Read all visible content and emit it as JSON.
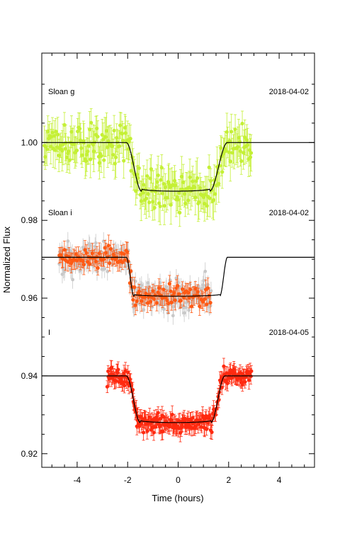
{
  "chart_data": {
    "type": "scatter",
    "title": "",
    "xlabel": "Time (hours)",
    "ylabel": "Normalized Flux",
    "xlim": [
      -5.4,
      5.4
    ],
    "ylim": [
      0.9165,
      1.023
    ],
    "xticks": [
      -4,
      -2,
      0,
      2,
      4
    ],
    "xtick_labels": [
      "-4",
      "-2",
      "0",
      "2",
      "4"
    ],
    "yticks": [
      0.92,
      0.94,
      0.96,
      0.98,
      1.0
    ],
    "ytick_labels": [
      "0.92",
      "0.94",
      "0.96",
      "0.98",
      "1.00"
    ],
    "grid": false,
    "panels": [
      {
        "label": "Sloan g",
        "date": "2018-04-02",
        "baseline": 1.0,
        "depth": 0.0125,
        "point_color": "#c4f035",
        "x_range": [
          -5.3,
          2.9
        ],
        "noise": 0.0035,
        "model_transit": {
          "t1": -2.05,
          "t2": -1.45,
          "t3": 1.25,
          "t4": 1.95
        }
      },
      {
        "label": "Sloan i",
        "date": "2018-04-02",
        "baseline": 0.9705,
        "depth": 0.01,
        "point_color": "#ff5a14",
        "raw_color": "#c8c8c8",
        "x_range": [
          -4.7,
          1.3
        ],
        "noise": 0.0018,
        "model_transit": {
          "t1": -2.05,
          "t2": -1.75,
          "t3": 1.65,
          "t4": 1.95
        }
      },
      {
        "label": "I",
        "date": "2018-04-05",
        "baseline": 0.94,
        "depth": 0.012,
        "point_color": "#ff2a10",
        "x_range": [
          -2.8,
          2.9
        ],
        "noise": 0.0016,
        "model_transit": {
          "t1": -2.05,
          "t2": -1.5,
          "t3": 1.3,
          "t4": 1.85
        }
      }
    ]
  }
}
